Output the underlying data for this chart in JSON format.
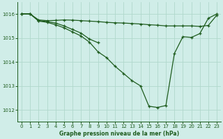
{
  "title": "Graphe pression niveau de la mer (hPa)",
  "background_color": "#d0ede8",
  "grid_color": "#b0d8cc",
  "line_color": "#1e5c1e",
  "xlim": [
    -0.5,
    23.5
  ],
  "ylim": [
    1011.5,
    1016.5
  ],
  "yticks": [
    1012,
    1013,
    1014,
    1015,
    1016
  ],
  "xticks": [
    0,
    1,
    2,
    3,
    4,
    5,
    6,
    7,
    8,
    9,
    10,
    11,
    12,
    13,
    14,
    15,
    16,
    17,
    18,
    19,
    20,
    21,
    22,
    23
  ],
  "s1_x": [
    0,
    1,
    2,
    3,
    4,
    5,
    6,
    7,
    8,
    9,
    10,
    11,
    12,
    13,
    14,
    15,
    16,
    17,
    18,
    19,
    20,
    21,
    22,
    23
  ],
  "s1_y": [
    1016.0,
    1016.0,
    1015.75,
    1015.72,
    1015.73,
    1015.75,
    1015.74,
    1015.72,
    1015.7,
    1015.68,
    1015.65,
    1015.63,
    1015.62,
    1015.6,
    1015.58,
    1015.55,
    1015.53,
    1015.5,
    1015.5,
    1015.5,
    1015.5,
    1015.48,
    1015.52,
    1015.95
  ],
  "s2_x": [
    0,
    1,
    2,
    3,
    4,
    5,
    6,
    7,
    8,
    9
  ],
  "s2_y": [
    1016.0,
    1016.0,
    1015.72,
    1015.68,
    1015.62,
    1015.5,
    1015.35,
    1015.2,
    1014.95,
    1014.8
  ],
  "s3_x": [
    0,
    1,
    2,
    3,
    4,
    5,
    6,
    7,
    8,
    9,
    10,
    11,
    12,
    13,
    14,
    15,
    16,
    17,
    18,
    19,
    20,
    21,
    22,
    23
  ],
  "s3_y": [
    1016.0,
    1016.0,
    1015.7,
    1015.65,
    1015.55,
    1015.42,
    1015.25,
    1015.08,
    1014.82,
    1014.42,
    1014.18,
    1013.82,
    1013.52,
    1013.22,
    1013.0,
    1012.15,
    1012.1,
    1012.18,
    1014.35,
    1015.05,
    1015.02,
    1015.18,
    1015.82,
    1016.0
  ]
}
